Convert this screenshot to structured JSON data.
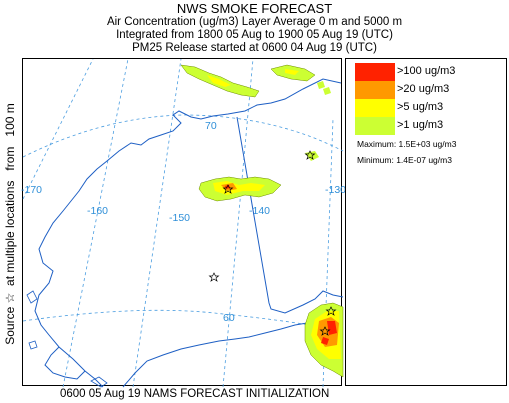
{
  "header": {
    "title": "NWS SMOKE FORECAST",
    "line2": "Air Concentration (ug/m3) Layer Average    0 m and  5000 m",
    "line3": "Integrated from 1800 05 Aug to 1900 05 Aug 19 (UTC)",
    "line4": "PM25 Release started at 0600 04 Aug 19 (UTC)"
  },
  "side_label": "Source ☆  at multiple locations   from   100 m",
  "footer": "0600 05 Aug 19 NAMS FORECAST INITIALIZATION",
  "map": {
    "lat_labels": [
      "70",
      "60"
    ],
    "lon_labels": [
      "-170",
      "-160",
      "-150",
      "-140",
      "-130"
    ],
    "colors": {
      "coast": "#1e5fc4",
      "border": "#1e5fc4",
      "grid": "#4a9de0",
      "grid_label": "#2f8fd8"
    }
  },
  "legend": {
    "items": [
      {
        "label": ">100 ug/m3",
        "color": "#ff2200"
      },
      {
        "label": ">20 ug/m3",
        "color": "#ff9900"
      },
      {
        "label": ">5 ug/m3",
        "color": "#ffff00"
      },
      {
        "label": ">1 ug/m3",
        "color": "#ccff33"
      }
    ],
    "maximum": "Maximum: 1.5E+03 ug/m3",
    "minimum": "Minimum: 1.4E-07 ug/m3"
  }
}
